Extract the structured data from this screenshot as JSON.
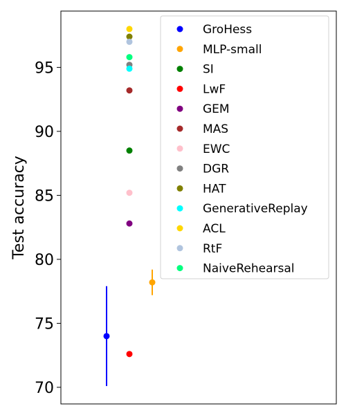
{
  "chart_data": {
    "type": "scatter",
    "title": "",
    "xlabel": "",
    "ylabel": "Test accuracy",
    "ylim": [
      68.7,
      99.4
    ],
    "yticks": [
      70,
      75,
      80,
      85,
      90,
      95
    ],
    "grid": false,
    "legend_position": "top-right",
    "series": [
      {
        "name": "GroHess",
        "color": "#0000ff",
        "x": 1,
        "y": 74.0,
        "err_low": 70.1,
        "err_high": 77.9
      },
      {
        "name": "MLP-small",
        "color": "#ffa500",
        "x": 3,
        "y": 78.2,
        "err_low": 77.2,
        "err_high": 79.2
      },
      {
        "name": "SI",
        "color": "#008000",
        "x": 2,
        "y": 88.5
      },
      {
        "name": "LwF",
        "color": "#ff0000",
        "x": 2,
        "y": 72.6
      },
      {
        "name": "GEM",
        "color": "#800080",
        "x": 2,
        "y": 82.8
      },
      {
        "name": "MAS",
        "color": "#a52a2a",
        "x": 2,
        "y": 93.2
      },
      {
        "name": "EWC",
        "color": "#ffc0cb",
        "x": 2,
        "y": 85.2
      },
      {
        "name": "DGR",
        "color": "#808080",
        "x": 2,
        "y": 95.2
      },
      {
        "name": "HAT",
        "color": "#808000",
        "x": 2,
        "y": 97.4
      },
      {
        "name": "GenerativeReplay",
        "color": "#00ffff",
        "x": 2,
        "y": 94.9
      },
      {
        "name": "ACL",
        "color": "#ffd700",
        "x": 2,
        "y": 98.0
      },
      {
        "name": "RtF",
        "color": "#b0c4de",
        "x": 2,
        "y": 97.0
      },
      {
        "name": "NaiveRehearsal",
        "color": "#00ff7f",
        "x": 2,
        "y": 95.8
      }
    ]
  }
}
